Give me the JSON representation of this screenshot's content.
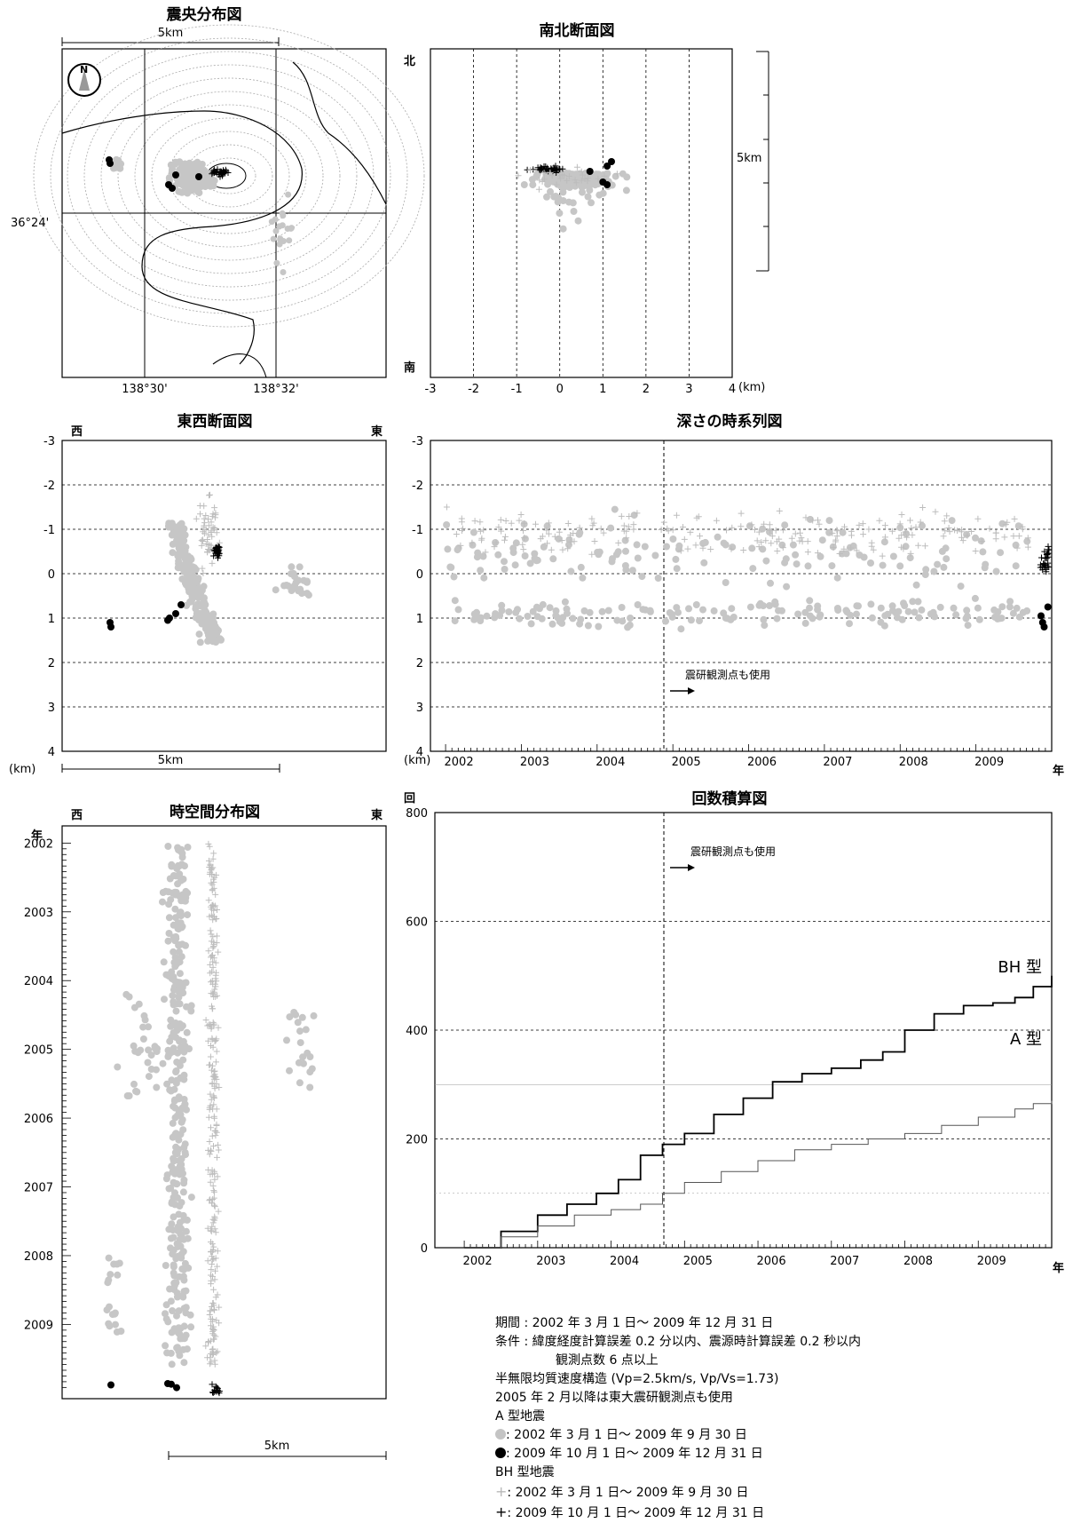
{
  "titles": {
    "epicenter": "震央分布図",
    "ns": "南北断面図",
    "ew": "東西断面図",
    "depth_time": "深さの時系列図",
    "spacetime": "時空間分布図",
    "cumulative": "回数積算図"
  },
  "labels": {
    "scale_5km": "5km",
    "lat": "36°24'",
    "lon1": "138°30'",
    "lon2": "138°32'",
    "north": "北",
    "south": "南",
    "west": "西",
    "east": "東",
    "km": "(km)",
    "km_ns": "(km)",
    "year": "年",
    "count": "回",
    "compass": "N",
    "shinken_note": "震研観測点も使用",
    "bh_type": "BH 型",
    "a_type": "A 型"
  },
  "legend": {
    "period": "期間 : 2002 年 3 月 1 日～ 2009 年 12 月 31 日",
    "cond1": "条件 : 緯度経度計算誤差  0.2 分以内、震源時計算誤差 0.2 秒以内",
    "cond2": "観測点数 6 点以上",
    "struct": "半無限均質速度構造 (Vp=2.5km/s, Vp/Vs=1.73)",
    "note2005": "2005 年 2 月以降は東大震研観測点も使用",
    "a_header": "A 型地震",
    "a_gray": ": 2002 年 3 月 1 日～ 2009 年 9 月 30 日",
    "a_black": ": 2009 年 10 月 1 日～ 2009 年 12 月 31 日",
    "bh_header": "BH 型地震",
    "bh_gray": ": 2002 年 3 月 1 日～ 2009 年 9 月 30 日",
    "bh_black": ": 2009 年 10 月 1 日～ 2009 年 12 月 31 日"
  },
  "chart_data": [
    {
      "name": "ns_section",
      "type": "scatter",
      "title": "南北断面図",
      "xlabel": "(km)",
      "x_ticks": [
        -3,
        -2,
        -1,
        0,
        1,
        2,
        3,
        4
      ],
      "xlim": [
        -3,
        4
      ]
    },
    {
      "name": "ew_section",
      "type": "scatter",
      "title": "東西断面図",
      "ylabel": "(km)",
      "y_ticks": [
        -3,
        -2,
        -1,
        0,
        1,
        2,
        3,
        4
      ],
      "ylim": [
        -3,
        4
      ]
    },
    {
      "name": "depth_time",
      "type": "scatter",
      "title": "深さの時系列図",
      "ylabel": "(km)",
      "y_ticks": [
        -3,
        -2,
        -1,
        0,
        1,
        2,
        3,
        4
      ],
      "ylim": [
        -3,
        4
      ],
      "x_ticks": [
        "2002",
        "2003",
        "2004",
        "2005",
        "2006",
        "2007",
        "2008",
        "2009"
      ],
      "annotation": "震研観測点も使用"
    },
    {
      "name": "spacetime",
      "type": "scatter",
      "title": "時空間分布図",
      "y_ticks": [
        "2002",
        "2003",
        "2004",
        "2005",
        "2006",
        "2007",
        "2008",
        "2009"
      ],
      "xlabel": "5km"
    },
    {
      "name": "cumulative",
      "type": "line",
      "title": "回数積算図",
      "ylabel": "回",
      "y_ticks": [
        0,
        200,
        400,
        600,
        800
      ],
      "ylim": [
        0,
        800
      ],
      "x_ticks": [
        "2002",
        "2003",
        "2004",
        "2005",
        "2006",
        "2007",
        "2008",
        "2009"
      ],
      "xlim": [
        2001.6,
        2010.0
      ],
      "annotation": "震研観測点も使用",
      "series": [
        {
          "name": "BH 型",
          "x": [
            2002.0,
            2002.5,
            2003.0,
            2003.4,
            2003.8,
            2004.1,
            2004.4,
            2004.7,
            2005.0,
            2005.4,
            2005.8,
            2006.2,
            2006.6,
            2007.0,
            2007.4,
            2007.7,
            2008.0,
            2008.4,
            2008.8,
            2009.2,
            2009.5,
            2009.75,
            2010.0
          ],
          "values": [
            0,
            30,
            60,
            80,
            100,
            125,
            170,
            190,
            210,
            245,
            275,
            305,
            320,
            330,
            345,
            360,
            400,
            430,
            445,
            450,
            460,
            480,
            500
          ]
        },
        {
          "name": "A 型",
          "x": [
            2002.0,
            2002.5,
            2003.0,
            2003.5,
            2004.0,
            2004.4,
            2004.7,
            2005.0,
            2005.5,
            2006.0,
            2006.5,
            2007.0,
            2007.5,
            2008.0,
            2008.5,
            2009.0,
            2009.5,
            2009.75,
            2010.0
          ],
          "values": [
            0,
            20,
            40,
            60,
            70,
            80,
            100,
            120,
            140,
            160,
            180,
            190,
            200,
            210,
            225,
            240,
            255,
            265,
            270
          ]
        }
      ]
    }
  ]
}
